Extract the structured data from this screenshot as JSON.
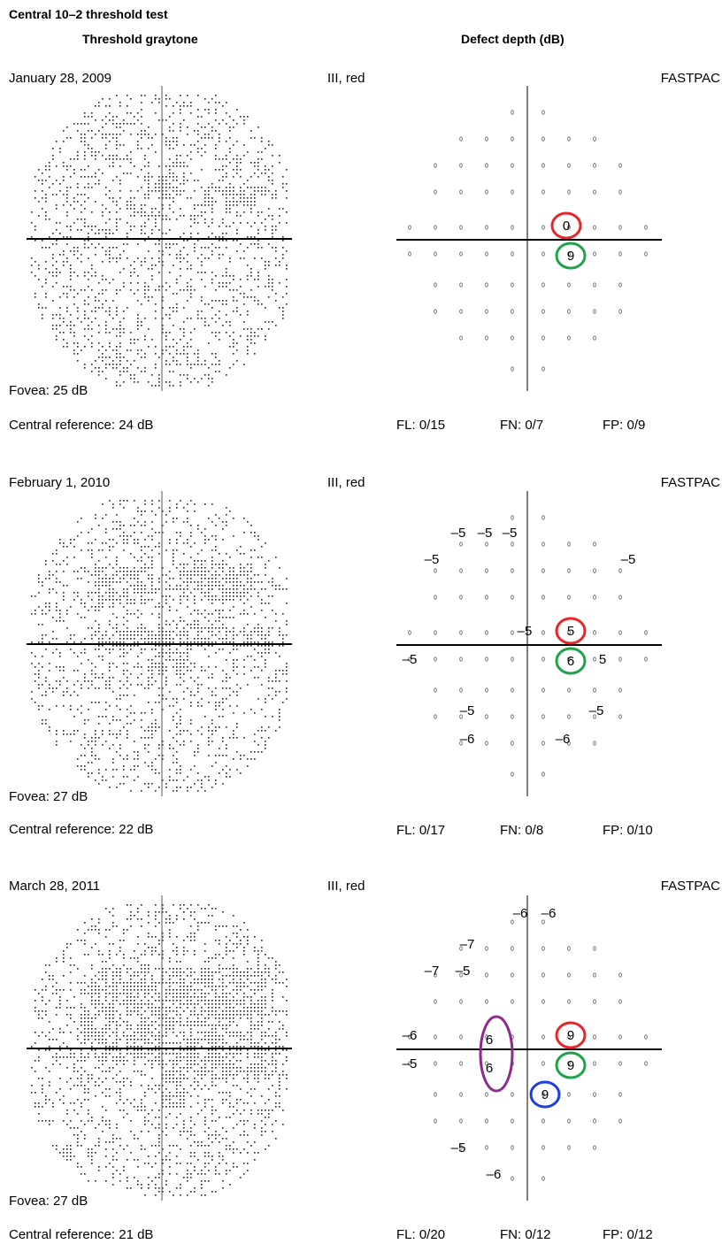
{
  "header": {
    "title": "Central 10–2 threshold test",
    "graytone_heading": "Threshold graytone",
    "defect_heading": "Defect depth (dB)"
  },
  "tests": [
    {
      "date": "January 28, 2009",
      "stimulus": "III, red",
      "strategy": "FASTPAC",
      "fovea": "Fovea: 25 dB",
      "central_reference": "Central reference: 24 dB",
      "fl": "FL: 0/15",
      "fn": "FN: 0/7",
      "fp": "FP: 0/9",
      "defect_labels": [],
      "circled": [
        {
          "value": "0",
          "color": "#e8262a",
          "shape": "circle"
        },
        {
          "value": "9",
          "color": "#1fa34a",
          "shape": "circle"
        }
      ]
    },
    {
      "date": "February 1, 2010",
      "stimulus": "III, red",
      "strategy": "FASTPAC",
      "fovea": "Fovea: 27 dB",
      "central_reference": "Central reference: 22 dB",
      "fl": "FL: 0/17",
      "fn": "FN: 0/8",
      "fp": "FP: 0/10",
      "defect_labels": [
        "–5",
        "–5",
        "–5",
        "–5",
        "–5",
        "–5",
        "–5",
        "5",
        "–5",
        "–5",
        "–6",
        "–6"
      ],
      "circled": [
        {
          "value": "5",
          "color": "#e8262a",
          "shape": "circle"
        },
        {
          "value": "6",
          "color": "#1fa34a",
          "shape": "circle"
        }
      ]
    },
    {
      "date": "March 28, 2011",
      "stimulus": "III, red",
      "strategy": "FASTPAC",
      "fovea": "Fovea: 27 dB",
      "central_reference": "Central reference: 21 dB",
      "fl": "FL: 0/20",
      "fn": "FN: 0/12",
      "fp": "FP: 0/12",
      "defect_labels": [
        "–6",
        "–6",
        "–7",
        "–7",
        "–5",
        "–6",
        "–5",
        "–5",
        "–6"
      ],
      "circled": [
        {
          "value": "9",
          "color": "#e8262a",
          "shape": "circle"
        },
        {
          "value": "9",
          "color": "#1fa34a",
          "shape": "circle"
        },
        {
          "value": "9",
          "color": "#1f3ee0",
          "shape": "circle"
        },
        {
          "value": "6",
          "color": "#8e2a8e",
          "shape": "ellipse"
        },
        {
          "value": "6",
          "color": "#8e2a8e",
          "shape": "ellipse"
        }
      ]
    }
  ]
}
